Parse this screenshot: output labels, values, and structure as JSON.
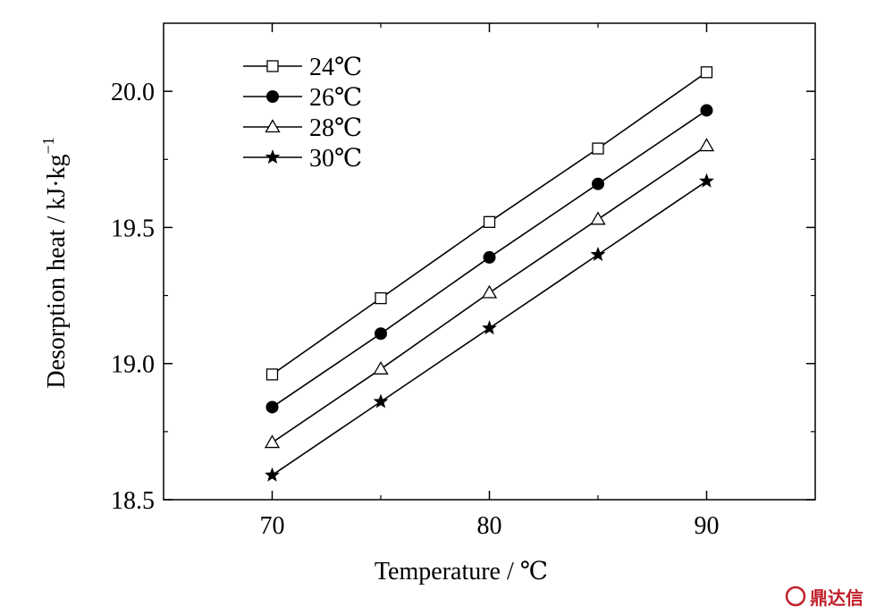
{
  "chart_data": {
    "type": "line",
    "xlabel": "Temperature / ℃",
    "ylabel_main": "Desorption heat / kJ·kg",
    "ylabel_exp": "−1",
    "x": [
      70,
      75,
      80,
      85,
      90
    ],
    "xlim": [
      65,
      95
    ],
    "ylim": [
      18.5,
      20.25
    ],
    "xticks": [
      70,
      80,
      90
    ],
    "xtick_labels": [
      "70",
      "80",
      "90"
    ],
    "yticks": [
      18.5,
      19.0,
      19.5,
      20.0
    ],
    "ytick_labels": [
      "18.5",
      "19.0",
      "19.5",
      "20.0"
    ],
    "grid": false,
    "legend_position": "top-left",
    "series": [
      {
        "name": "24℃",
        "marker": "open-square",
        "values": [
          18.96,
          19.24,
          19.52,
          19.79,
          20.07
        ]
      },
      {
        "name": "26℃",
        "marker": "filled-circle",
        "values": [
          18.84,
          19.11,
          19.39,
          19.66,
          19.93
        ]
      },
      {
        "name": "28℃",
        "marker": "open-triangle",
        "values": [
          18.71,
          18.98,
          19.26,
          19.53,
          19.8
        ]
      },
      {
        "name": "30℃",
        "marker": "filled-star",
        "values": [
          18.59,
          18.86,
          19.13,
          19.4,
          19.67
        ]
      }
    ]
  },
  "watermark": {
    "text": "鼎达信",
    "color": "#c0202a"
  }
}
